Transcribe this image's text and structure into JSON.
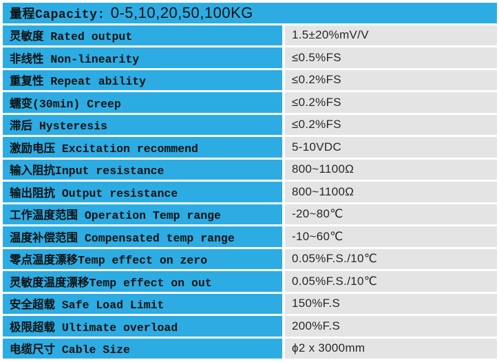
{
  "table": {
    "header": {
      "label": "量程Capacity:",
      "value": "0-5,10,20,50,100KG"
    },
    "rows": [
      {
        "label": "灵敏度 Rated output",
        "value": "1.5±20%mV/V"
      },
      {
        "label": "非线性 Non-linearity",
        "value": "≤0.5%FS"
      },
      {
        "label": "重复性 Repeat ability",
        "value": "≤0.2%FS"
      },
      {
        "label": "蠕变(30min) Creep",
        "value": "≤0.2%FS"
      },
      {
        "label": "滞后 Hysteresis",
        "value": "≤0.2%FS"
      },
      {
        "label": "激励电压 Excitation recommend",
        "value": "5-10VDC"
      },
      {
        "label": "输入阻抗Input resistance",
        "value": "800~1100Ω"
      },
      {
        "label": "输出阻抗 Output resistance",
        "value": "800~1100Ω"
      },
      {
        "label": "工作温度范围 Operation Temp range",
        "value": "-20~80℃"
      },
      {
        "label": "温度补偿范围 Compensated temp range",
        "value": "-10~60℃"
      },
      {
        "label": "零点温度漂移Temp effect on zero",
        "value": "0.05%F.S./10℃"
      },
      {
        "label": "灵敏度温度漂移Temp effect on out",
        "value": "0.05%F.S./10℃"
      },
      {
        "label": "安全超载 Safe Load Limit",
        "value": "150%F.S"
      },
      {
        "label": "极限超载 Ultimate overload",
        "value": "200%F.S"
      },
      {
        "label": "电缆尺寸 Cable Size",
        "value": "ϕ2 x 3000mm"
      }
    ],
    "colors": {
      "label_bg": "#2cace3",
      "value_bg": "#e4e4e4",
      "gap": "#ffffff",
      "label_text": "#111111",
      "value_text": "#272727"
    }
  }
}
